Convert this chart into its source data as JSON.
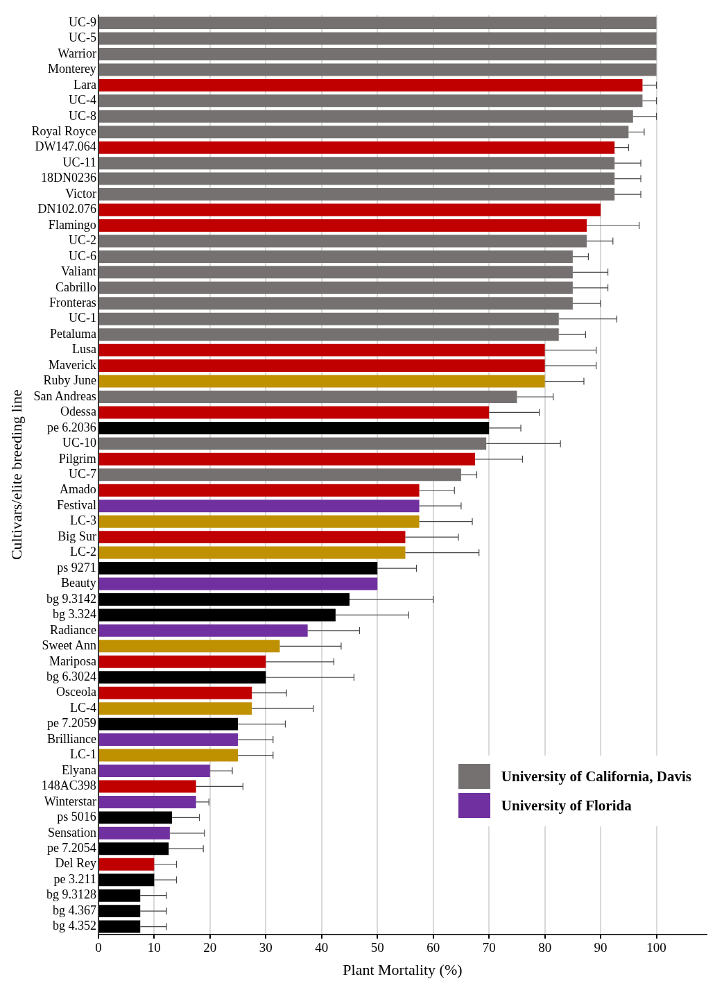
{
  "chart_data": {
    "type": "bar",
    "orientation": "horizontal",
    "stacked": true,
    "xlabel": "Plant Mortality (%)",
    "ylabel": "Cultivars/elite breeding line",
    "xlim": [
      0,
      109
    ],
    "xticks": [
      0,
      10,
      20,
      30,
      40,
      50,
      60,
      70,
      80,
      90,
      100
    ],
    "grid": "x",
    "legend": "bottom right",
    "categories": [
      "UC-9",
      "UC-5",
      "Warrior",
      "Monterey",
      "Lara",
      "UC-4",
      "UC-8",
      "Royal Royce",
      "DW147.064",
      "UC-11",
      "18DN0236",
      "Victor",
      "DN102.076",
      "Flamingo",
      "UC-2",
      "UC-6",
      "Valiant",
      "Cabrillo",
      "Fronteras",
      "UC-1",
      "Petaluma",
      "Lusa",
      "Maverick",
      "Ruby June",
      "San Andreas",
      "Odessa",
      "pe 6.2036",
      "UC-10",
      "Pilgrim",
      "UC-7",
      "Amado",
      "Festival",
      "LC-3",
      "Big Sur",
      "LC-2",
      "ps 9271",
      "Beauty",
      "bg 9.3142",
      "bg 3.324",
      "Radiance",
      "Sweet Ann",
      "Mariposa",
      "bg 6.3024",
      "Osceola",
      "LC-4",
      "pe 7.2059",
      "Brilliance",
      "LC-1",
      "Elyana",
      "148AC398",
      "Winterstar",
      "ps 5016",
      "Sensation",
      "pe 7.2054",
      "Del Rey",
      "pe 3.211",
      "bg 9.3128",
      "bg 4.367",
      "bg 4.352"
    ],
    "series": [
      {
        "color": "#c00000",
        "values": [
          null,
          null,
          null,
          null,
          97.5,
          null,
          null,
          null,
          92.5,
          null,
          null,
          null,
          90,
          87.5,
          null,
          null,
          null,
          null,
          null,
          null,
          null,
          80,
          80,
          null,
          null,
          70,
          null,
          null,
          67.5,
          null,
          57.5,
          null,
          null,
          55,
          null,
          null,
          null,
          null,
          null,
          null,
          null,
          30,
          null,
          27.5,
          null,
          null,
          null,
          null,
          null,
          17.5,
          null,
          null,
          null,
          null,
          10,
          null,
          null,
          null,
          null
        ],
        "errors": [
          null,
          null,
          null,
          null,
          [
            97.5,
            100
          ],
          null,
          null,
          null,
          [
            92.5,
            95
          ],
          null,
          null,
          null,
          null,
          [
            87.5,
            96.9
          ],
          null,
          null,
          null,
          null,
          null,
          null,
          null,
          [
            80,
            89.2
          ],
          [
            80,
            89.2
          ],
          null,
          null,
          [
            70,
            79
          ],
          null,
          null,
          [
            67.5,
            76
          ],
          null,
          [
            57.5,
            63.8
          ],
          null,
          null,
          [
            55,
            64.5
          ],
          null,
          null,
          null,
          null,
          null,
          null,
          null,
          [
            30,
            42.2
          ],
          null,
          [
            27.5,
            33.7
          ],
          null,
          null,
          null,
          null,
          null,
          [
            17.5,
            25.9
          ],
          null,
          null,
          null,
          null,
          [
            10,
            14
          ],
          null,
          null,
          null,
          null
        ]
      },
      {
        "name": "University of California, Davis",
        "color": "#767171",
        "values": [
          100,
          100,
          100,
          100,
          null,
          97.5,
          95.8,
          95,
          null,
          92.5,
          92.5,
          92.5,
          null,
          null,
          87.5,
          85,
          85,
          85,
          85,
          82.5,
          82.5,
          null,
          null,
          null,
          75,
          null,
          null,
          69.5,
          null,
          65,
          null,
          null,
          null,
          null,
          null,
          null,
          null,
          null,
          null,
          null,
          null,
          null,
          null,
          null,
          null,
          null,
          null,
          null,
          null,
          null,
          null,
          null,
          null,
          null,
          null,
          null,
          null,
          null,
          null
        ],
        "errors": [
          null,
          null,
          null,
          null,
          null,
          [
            97.5,
            100
          ],
          [
            95.8,
            100
          ],
          [
            95,
            97.8
          ],
          null,
          [
            92.5,
            97.2
          ],
          [
            92.5,
            97.2
          ],
          [
            92.5,
            97.2
          ],
          null,
          null,
          [
            87.5,
            92.2
          ],
          [
            85,
            87.8
          ],
          [
            85,
            91.3
          ],
          [
            85,
            91.3
          ],
          [
            85,
            90
          ],
          [
            82.5,
            92.9
          ],
          [
            82.5,
            87.3
          ],
          null,
          null,
          null,
          [
            75,
            81.5
          ],
          null,
          null,
          [
            69.5,
            82.8
          ],
          null,
          [
            65,
            67.8
          ],
          null,
          null,
          null,
          null,
          null,
          null,
          null,
          null,
          null,
          null,
          null,
          null,
          null,
          null,
          null,
          null,
          null,
          null,
          null,
          null,
          null,
          null,
          null,
          null,
          null,
          null,
          null,
          null,
          null
        ]
      },
      {
        "color": "#000000",
        "values": [
          null,
          null,
          null,
          null,
          null,
          null,
          null,
          null,
          null,
          null,
          null,
          null,
          null,
          null,
          null,
          null,
          null,
          null,
          null,
          null,
          null,
          null,
          null,
          null,
          null,
          null,
          70,
          null,
          null,
          null,
          null,
          null,
          null,
          null,
          null,
          50,
          null,
          45,
          42.5,
          null,
          null,
          null,
          30,
          null,
          null,
          25,
          null,
          null,
          null,
          null,
          null,
          13.2,
          null,
          12.6,
          null,
          10,
          7.5,
          7.5,
          7.5
        ],
        "errors": [
          null,
          null,
          null,
          null,
          null,
          null,
          null,
          null,
          null,
          null,
          null,
          null,
          null,
          null,
          null,
          null,
          null,
          null,
          null,
          null,
          null,
          null,
          null,
          null,
          null,
          null,
          [
            70,
            75.7
          ],
          null,
          null,
          null,
          null,
          null,
          null,
          null,
          null,
          [
            50,
            57
          ],
          null,
          [
            45,
            60
          ],
          [
            42.5,
            55.6
          ],
          null,
          null,
          null,
          [
            30,
            45.8
          ],
          null,
          null,
          [
            25,
            33.5
          ],
          null,
          null,
          null,
          null,
          null,
          [
            13.2,
            18.1
          ],
          null,
          [
            12.6,
            18.8
          ],
          null,
          [
            10,
            14
          ],
          [
            7.5,
            12.2
          ],
          [
            7.5,
            12.2
          ],
          [
            7.5,
            12.2
          ]
        ]
      },
      {
        "name": "University of Florida",
        "color": "#7030a0",
        "values": [
          null,
          null,
          null,
          null,
          null,
          null,
          null,
          null,
          null,
          null,
          null,
          null,
          null,
          null,
          null,
          null,
          null,
          null,
          null,
          null,
          null,
          null,
          null,
          null,
          null,
          null,
          null,
          null,
          null,
          null,
          null,
          57.5,
          null,
          null,
          null,
          null,
          50,
          null,
          null,
          37.5,
          null,
          null,
          null,
          null,
          null,
          null,
          25,
          null,
          20,
          null,
          17.5,
          null,
          12.8,
          null,
          null,
          null,
          null,
          null,
          null
        ],
        "errors": [
          null,
          null,
          null,
          null,
          null,
          null,
          null,
          null,
          null,
          null,
          null,
          null,
          null,
          null,
          null,
          null,
          null,
          null,
          null,
          null,
          null,
          null,
          null,
          null,
          null,
          null,
          null,
          null,
          null,
          null,
          null,
          [
            57.5,
            65
          ],
          null,
          null,
          null,
          null,
          null,
          null,
          null,
          [
            37.5,
            46.8
          ],
          null,
          null,
          null,
          null,
          null,
          null,
          [
            25,
            31.3
          ],
          null,
          [
            20,
            24
          ],
          null,
          [
            17.5,
            19.8
          ],
          null,
          [
            12.8,
            19
          ],
          null,
          null,
          null,
          null,
          null,
          null
        ]
      },
      {
        "color": "#bf9000",
        "values": [
          null,
          null,
          null,
          null,
          null,
          null,
          null,
          null,
          null,
          null,
          null,
          null,
          null,
          null,
          null,
          null,
          null,
          null,
          null,
          null,
          null,
          null,
          null,
          80,
          null,
          null,
          null,
          null,
          null,
          null,
          null,
          null,
          57.5,
          null,
          55,
          null,
          null,
          null,
          null,
          null,
          32.5,
          null,
          null,
          null,
          27.5,
          null,
          null,
          25,
          null,
          null,
          null,
          null,
          null,
          null,
          null,
          null,
          null,
          null,
          null
        ],
        "errors": [
          null,
          null,
          null,
          null,
          null,
          null,
          null,
          null,
          null,
          null,
          null,
          null,
          null,
          null,
          null,
          null,
          null,
          null,
          null,
          null,
          null,
          null,
          null,
          [
            80,
            87
          ],
          null,
          null,
          null,
          null,
          null,
          null,
          null,
          null,
          [
            57.5,
            67
          ],
          null,
          [
            55,
            68.2
          ],
          null,
          null,
          null,
          null,
          null,
          [
            32.5,
            43.5
          ],
          null,
          null,
          null,
          [
            27.5,
            38.5
          ],
          null,
          null,
          [
            25,
            31.3
          ],
          null,
          null,
          null,
          null,
          null,
          null,
          null,
          null,
          null,
          null,
          null
        ]
      }
    ]
  }
}
